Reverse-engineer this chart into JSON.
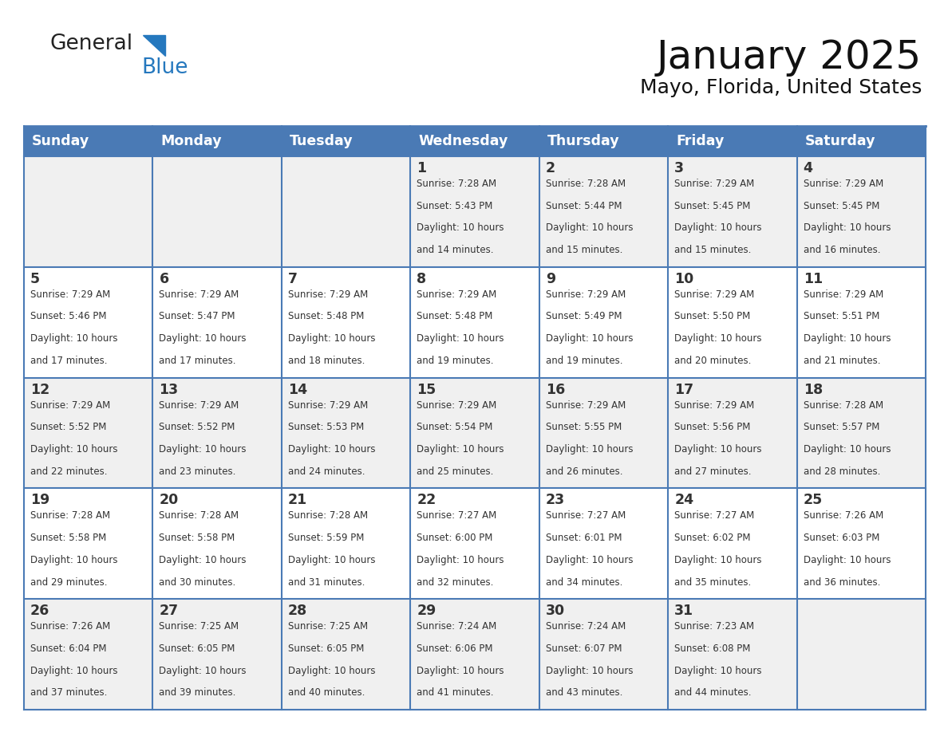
{
  "title": "January 2025",
  "subtitle": "Mayo, Florida, United States",
  "header_bg": "#4a7ab5",
  "header_text_color": "#FFFFFF",
  "cell_bg_row0": "#F0F0F0",
  "cell_bg_row1": "#FFFFFF",
  "cell_border_color": "#4a7ab5",
  "text_color": "#333333",
  "day_names": [
    "Sunday",
    "Monday",
    "Tuesday",
    "Wednesday",
    "Thursday",
    "Friday",
    "Saturday"
  ],
  "days": [
    {
      "day": 1,
      "col": 3,
      "row": 0,
      "sunrise": "7:28 AM",
      "sunset": "5:43 PM",
      "daylight": "10 hours and 14 minutes."
    },
    {
      "day": 2,
      "col": 4,
      "row": 0,
      "sunrise": "7:28 AM",
      "sunset": "5:44 PM",
      "daylight": "10 hours and 15 minutes."
    },
    {
      "day": 3,
      "col": 5,
      "row": 0,
      "sunrise": "7:29 AM",
      "sunset": "5:45 PM",
      "daylight": "10 hours and 15 minutes."
    },
    {
      "day": 4,
      "col": 6,
      "row": 0,
      "sunrise": "7:29 AM",
      "sunset": "5:45 PM",
      "daylight": "10 hours and 16 minutes."
    },
    {
      "day": 5,
      "col": 0,
      "row": 1,
      "sunrise": "7:29 AM",
      "sunset": "5:46 PM",
      "daylight": "10 hours and 17 minutes."
    },
    {
      "day": 6,
      "col": 1,
      "row": 1,
      "sunrise": "7:29 AM",
      "sunset": "5:47 PM",
      "daylight": "10 hours and 17 minutes."
    },
    {
      "day": 7,
      "col": 2,
      "row": 1,
      "sunrise": "7:29 AM",
      "sunset": "5:48 PM",
      "daylight": "10 hours and 18 minutes."
    },
    {
      "day": 8,
      "col": 3,
      "row": 1,
      "sunrise": "7:29 AM",
      "sunset": "5:48 PM",
      "daylight": "10 hours and 19 minutes."
    },
    {
      "day": 9,
      "col": 4,
      "row": 1,
      "sunrise": "7:29 AM",
      "sunset": "5:49 PM",
      "daylight": "10 hours and 19 minutes."
    },
    {
      "day": 10,
      "col": 5,
      "row": 1,
      "sunrise": "7:29 AM",
      "sunset": "5:50 PM",
      "daylight": "10 hours and 20 minutes."
    },
    {
      "day": 11,
      "col": 6,
      "row": 1,
      "sunrise": "7:29 AM",
      "sunset": "5:51 PM",
      "daylight": "10 hours and 21 minutes."
    },
    {
      "day": 12,
      "col": 0,
      "row": 2,
      "sunrise": "7:29 AM",
      "sunset": "5:52 PM",
      "daylight": "10 hours and 22 minutes."
    },
    {
      "day": 13,
      "col": 1,
      "row": 2,
      "sunrise": "7:29 AM",
      "sunset": "5:52 PM",
      "daylight": "10 hours and 23 minutes."
    },
    {
      "day": 14,
      "col": 2,
      "row": 2,
      "sunrise": "7:29 AM",
      "sunset": "5:53 PM",
      "daylight": "10 hours and 24 minutes."
    },
    {
      "day": 15,
      "col": 3,
      "row": 2,
      "sunrise": "7:29 AM",
      "sunset": "5:54 PM",
      "daylight": "10 hours and 25 minutes."
    },
    {
      "day": 16,
      "col": 4,
      "row": 2,
      "sunrise": "7:29 AM",
      "sunset": "5:55 PM",
      "daylight": "10 hours and 26 minutes."
    },
    {
      "day": 17,
      "col": 5,
      "row": 2,
      "sunrise": "7:29 AM",
      "sunset": "5:56 PM",
      "daylight": "10 hours and 27 minutes."
    },
    {
      "day": 18,
      "col": 6,
      "row": 2,
      "sunrise": "7:28 AM",
      "sunset": "5:57 PM",
      "daylight": "10 hours and 28 minutes."
    },
    {
      "day": 19,
      "col": 0,
      "row": 3,
      "sunrise": "7:28 AM",
      "sunset": "5:58 PM",
      "daylight": "10 hours and 29 minutes."
    },
    {
      "day": 20,
      "col": 1,
      "row": 3,
      "sunrise": "7:28 AM",
      "sunset": "5:58 PM",
      "daylight": "10 hours and 30 minutes."
    },
    {
      "day": 21,
      "col": 2,
      "row": 3,
      "sunrise": "7:28 AM",
      "sunset": "5:59 PM",
      "daylight": "10 hours and 31 minutes."
    },
    {
      "day": 22,
      "col": 3,
      "row": 3,
      "sunrise": "7:27 AM",
      "sunset": "6:00 PM",
      "daylight": "10 hours and 32 minutes."
    },
    {
      "day": 23,
      "col": 4,
      "row": 3,
      "sunrise": "7:27 AM",
      "sunset": "6:01 PM",
      "daylight": "10 hours and 34 minutes."
    },
    {
      "day": 24,
      "col": 5,
      "row": 3,
      "sunrise": "7:27 AM",
      "sunset": "6:02 PM",
      "daylight": "10 hours and 35 minutes."
    },
    {
      "day": 25,
      "col": 6,
      "row": 3,
      "sunrise": "7:26 AM",
      "sunset": "6:03 PM",
      "daylight": "10 hours and 36 minutes."
    },
    {
      "day": 26,
      "col": 0,
      "row": 4,
      "sunrise": "7:26 AM",
      "sunset": "6:04 PM",
      "daylight": "10 hours and 37 minutes."
    },
    {
      "day": 27,
      "col": 1,
      "row": 4,
      "sunrise": "7:25 AM",
      "sunset": "6:05 PM",
      "daylight": "10 hours and 39 minutes."
    },
    {
      "day": 28,
      "col": 2,
      "row": 4,
      "sunrise": "7:25 AM",
      "sunset": "6:05 PM",
      "daylight": "10 hours and 40 minutes."
    },
    {
      "day": 29,
      "col": 3,
      "row": 4,
      "sunrise": "7:24 AM",
      "sunset": "6:06 PM",
      "daylight": "10 hours and 41 minutes."
    },
    {
      "day": 30,
      "col": 4,
      "row": 4,
      "sunrise": "7:24 AM",
      "sunset": "6:07 PM",
      "daylight": "10 hours and 43 minutes."
    },
    {
      "day": 31,
      "col": 5,
      "row": 4,
      "sunrise": "7:23 AM",
      "sunset": "6:08 PM",
      "daylight": "10 hours and 44 minutes."
    }
  ],
  "logo_color1": "#222222",
  "logo_color2": "#2578be",
  "logo_triangle_color": "#2578be",
  "fig_width": 11.88,
  "fig_height": 9.18,
  "dpi": 100
}
